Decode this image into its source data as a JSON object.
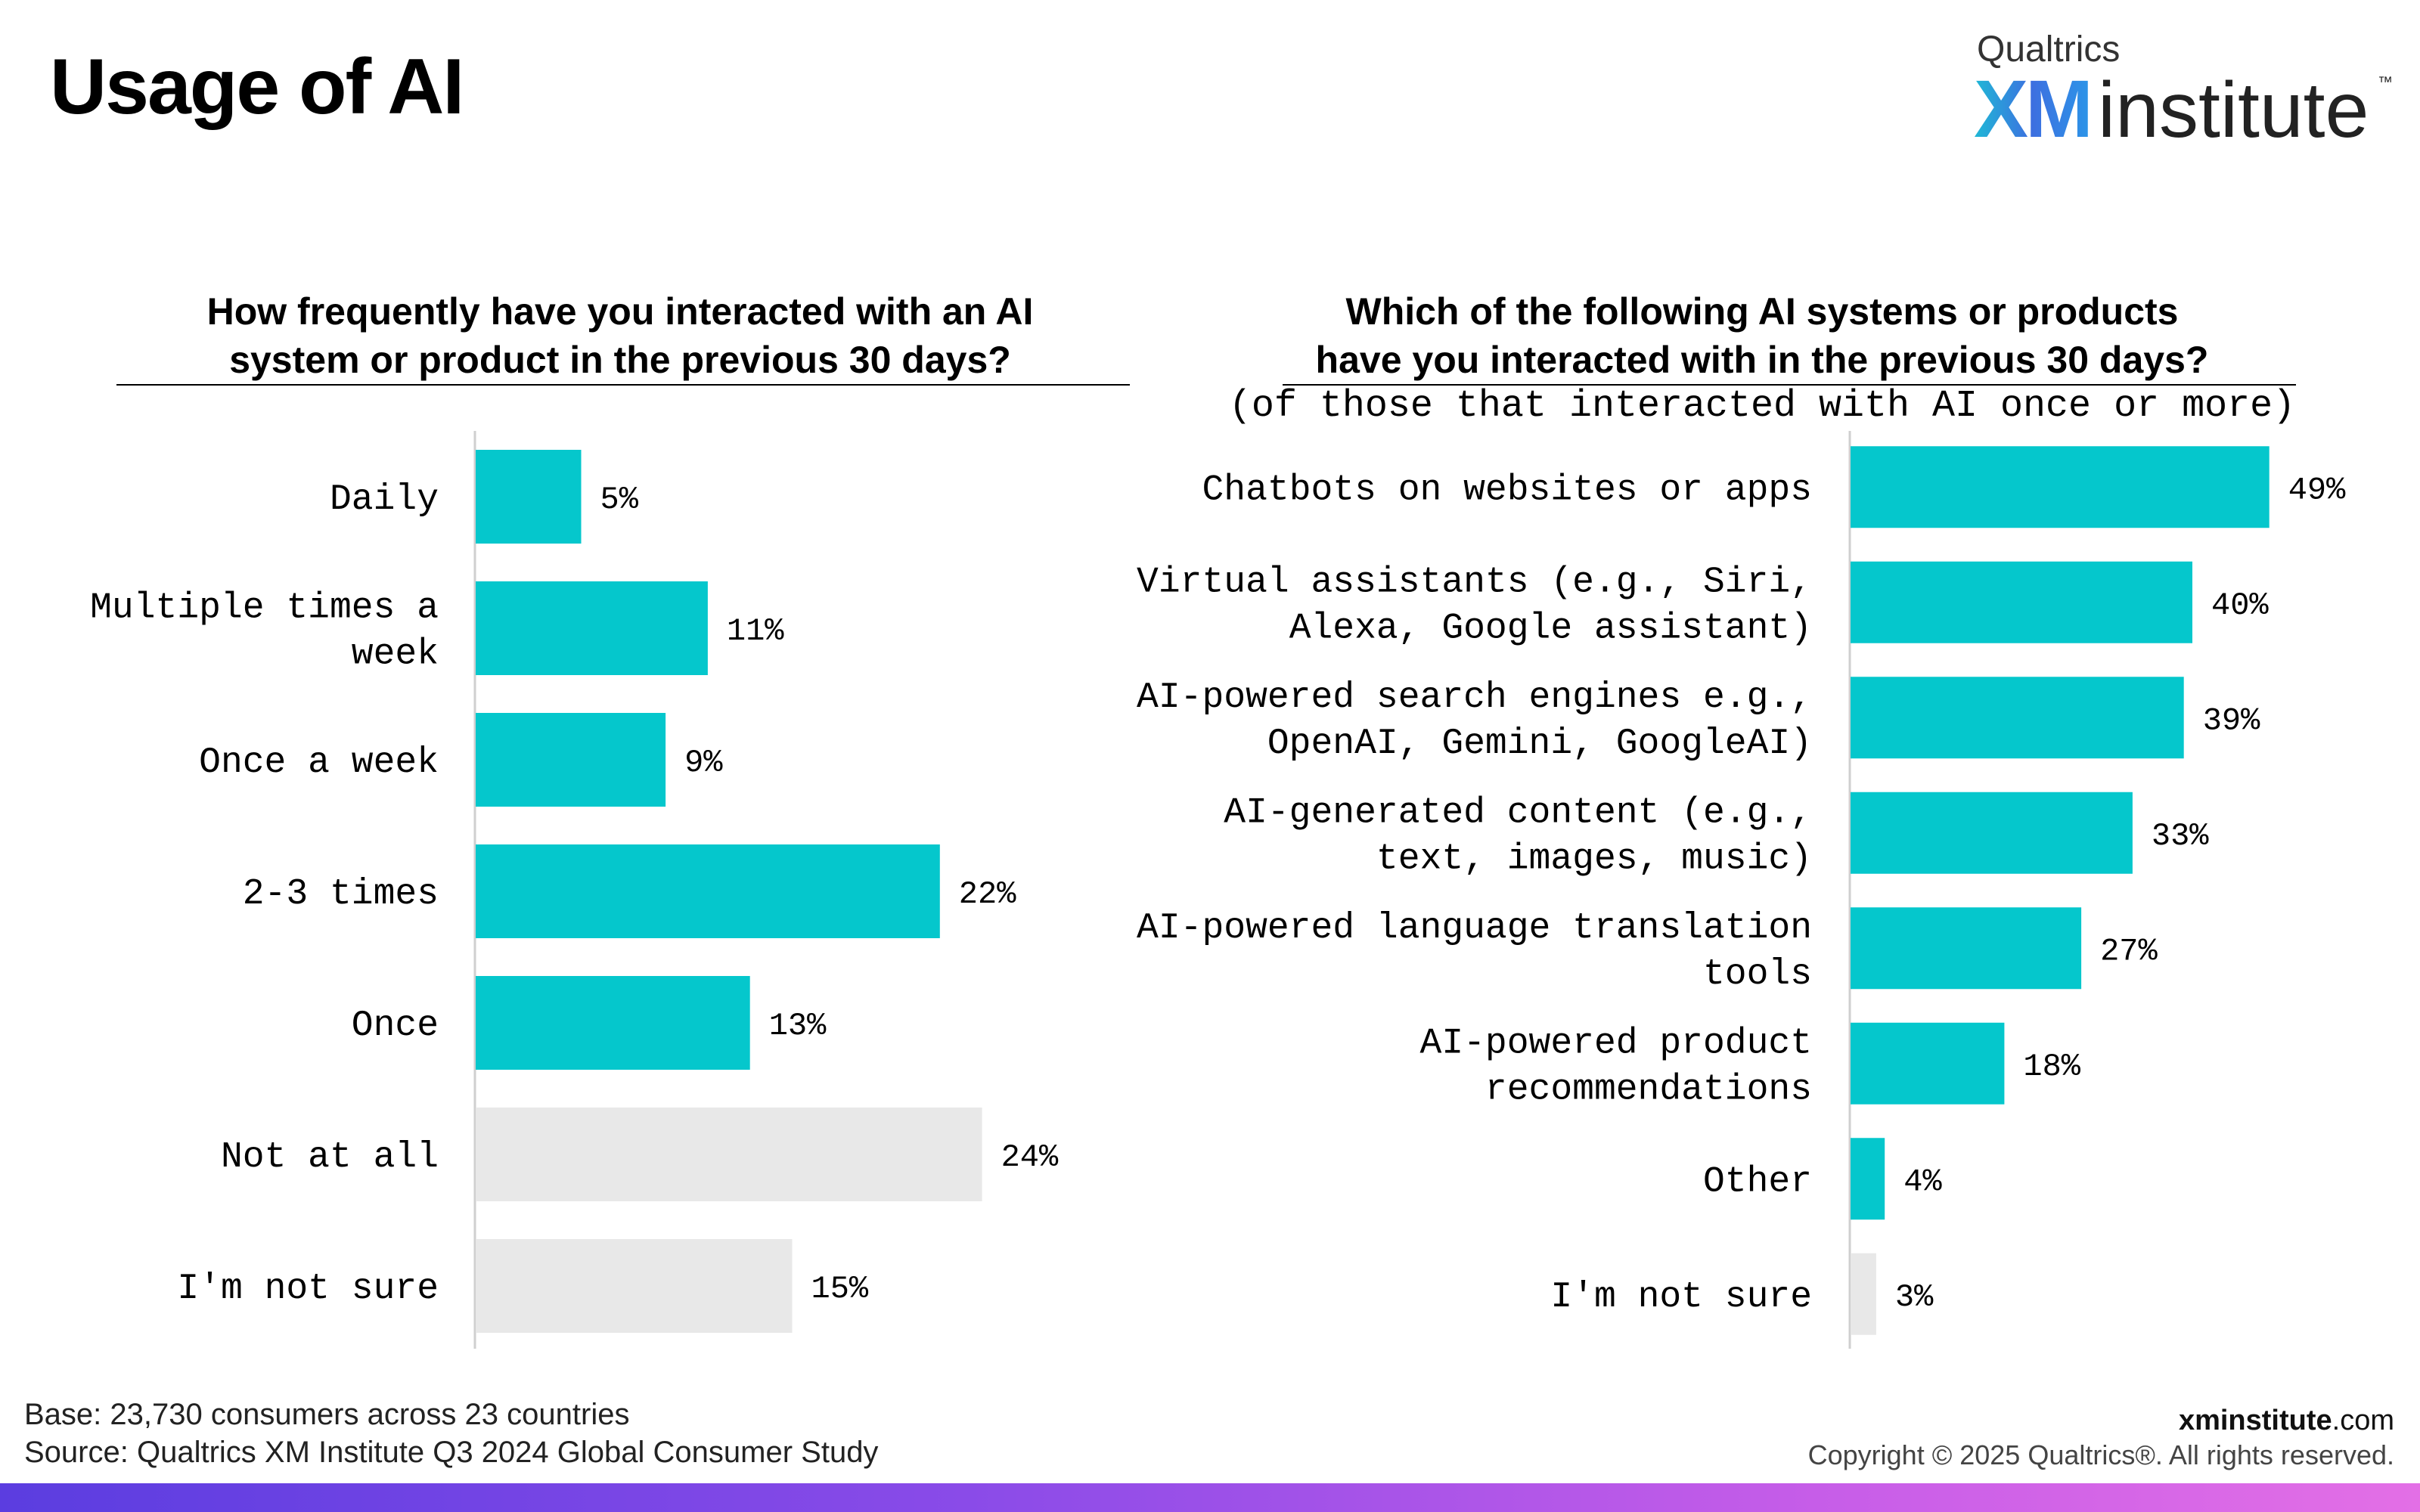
{
  "title": "Usage of AI",
  "logo": {
    "small_text": "Qualtrics",
    "xm_text": "XM",
    "institute_text": "institute",
    "tm": "™"
  },
  "colors": {
    "primary_bar": "#05c7cc",
    "muted_bar": "#e8e8e8",
    "axis": "#cfcfcf"
  },
  "left_question": {
    "line1": "How frequently have you interacted with an AI",
    "line2": "system or product in the previous 30 days?"
  },
  "right_question": {
    "line1": "Which of the following AI systems or products",
    "line2": "have you interacted with in the previous 30 days?",
    "subtitle": "(of those that interacted with AI once or more)"
  },
  "chart_data": [
    {
      "type": "bar",
      "orientation": "horizontal",
      "categories": [
        [
          "Daily"
        ],
        [
          "Multiple times a",
          "week"
        ],
        [
          "Once a week"
        ],
        [
          "2-3 times"
        ],
        [
          "Once"
        ],
        [
          "Not at all"
        ],
        [
          "I'm not sure"
        ]
      ],
      "values": [
        5,
        11,
        9,
        22,
        13,
        24,
        15
      ],
      "value_labels": [
        "5%",
        "11%",
        "9%",
        "22%",
        "13%",
        "24%",
        "15%"
      ],
      "muted": [
        false,
        false,
        false,
        false,
        false,
        true,
        true
      ],
      "unit": "%"
    },
    {
      "type": "bar",
      "orientation": "horizontal",
      "categories": [
        [
          "Chatbots on websites or apps"
        ],
        [
          "Virtual assistants (e.g., Siri,",
          "Alexa, Google assistant)"
        ],
        [
          "AI-powered search engines e.g.,",
          "OpenAI, Gemini, GoogleAI)"
        ],
        [
          "AI-generated content (e.g.,",
          "text, images, music)"
        ],
        [
          "AI-powered language translation",
          "tools"
        ],
        [
          "AI-powered product",
          "recommendations"
        ],
        [
          "Other"
        ],
        [
          "I'm not sure"
        ]
      ],
      "values": [
        49,
        40,
        39,
        33,
        27,
        18,
        4,
        3
      ],
      "value_labels": [
        "49%",
        "40%",
        "39%",
        "33%",
        "27%",
        "18%",
        "4%",
        "3%"
      ],
      "muted": [
        false,
        false,
        false,
        false,
        false,
        false,
        false,
        true
      ],
      "unit": "%"
    }
  ],
  "footer": {
    "base_key": "Base:",
    "base_text": "23,730 consumers across 23 countries",
    "source_key": "Source:",
    "source_text": "Qualtrics XM Institute Q3 2024 Global Consumer Study",
    "site_bold": "xminstitute",
    "site_rest": ".com",
    "copyright": "Copyright © 2025 Qualtrics®. All rights reserved."
  }
}
